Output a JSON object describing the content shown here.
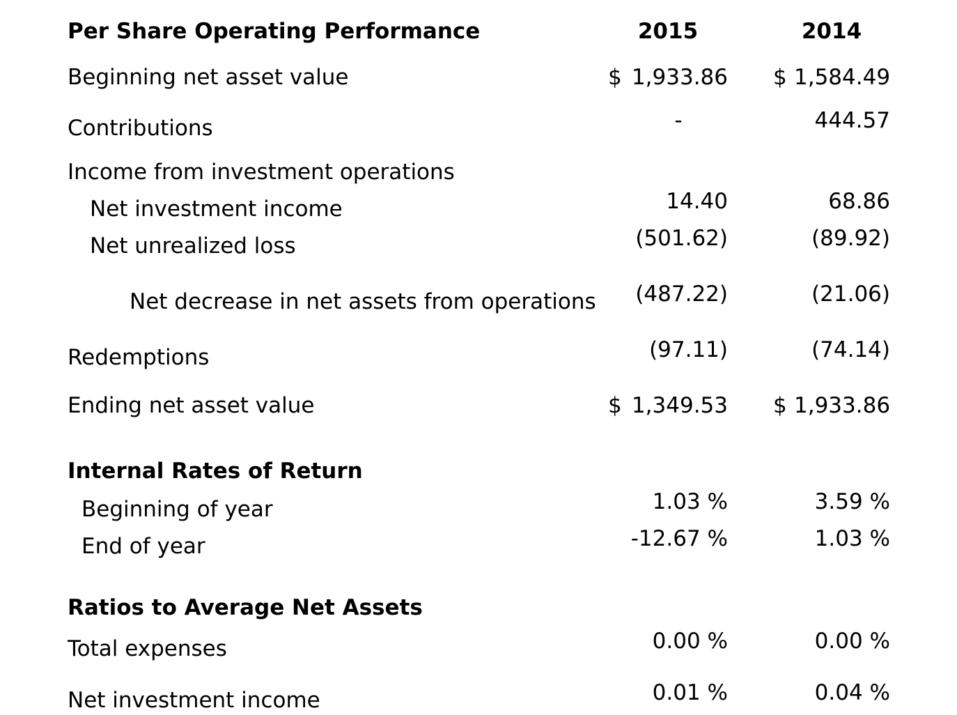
{
  "page": {
    "background_color": "#ffffff",
    "text_color": "#000000"
  },
  "table": {
    "title": "Per Share Operating Performance",
    "year_headers": [
      "2015",
      "2014"
    ],
    "rows": [
      {
        "label": "Beginning net asset value",
        "y2015": {
          "pre": "$",
          "num": "1,933.86"
        },
        "y2014": {
          "pre": "$",
          "num": "1,584.49"
        }
      },
      {
        "label": "Contributions",
        "y2015": {
          "num": "-"
        },
        "y2014": {
          "num": "444.57"
        }
      },
      {
        "label": "Income from investment operations"
      },
      {
        "label": "Net investment income",
        "y2015": {
          "num": "14.40"
        },
        "y2014": {
          "num": "68.86"
        }
      },
      {
        "label": "Net unrealized loss",
        "y2015": {
          "num": "(501.62)"
        },
        "y2014": {
          "num": "(89.92)"
        }
      },
      {
        "label": "Net decrease in net assets from operations",
        "y2015": {
          "num": "(487.22)"
        },
        "y2014": {
          "num": "(21.06)"
        }
      },
      {
        "label": "Redemptions",
        "y2015": {
          "num": "(97.11)"
        },
        "y2014": {
          "num": "(74.14)"
        }
      },
      {
        "label": "Ending net asset value",
        "y2015": {
          "pre": "$",
          "num": "1,349.53"
        },
        "y2014": {
          "pre": "$",
          "num": "1,933.86"
        }
      },
      {
        "label": "Internal Rates of Return"
      },
      {
        "label": "Beginning of year",
        "y2015": {
          "num": "1.03 %"
        },
        "y2014": {
          "num": "3.59 %"
        }
      },
      {
        "label": "End of year",
        "y2015": {
          "num": "-12.67 %"
        },
        "y2014": {
          "num": "1.03 %"
        }
      },
      {
        "label": "Ratios to Average Net Assets"
      },
      {
        "label": "Total expenses",
        "y2015": {
          "num": "0.00 %"
        },
        "y2014": {
          "num": "0.00 %"
        }
      },
      {
        "label": "Net investment income",
        "y2015": {
          "num": "0.01 %"
        },
        "y2014": {
          "num": "0.04 %"
        }
      }
    ]
  }
}
